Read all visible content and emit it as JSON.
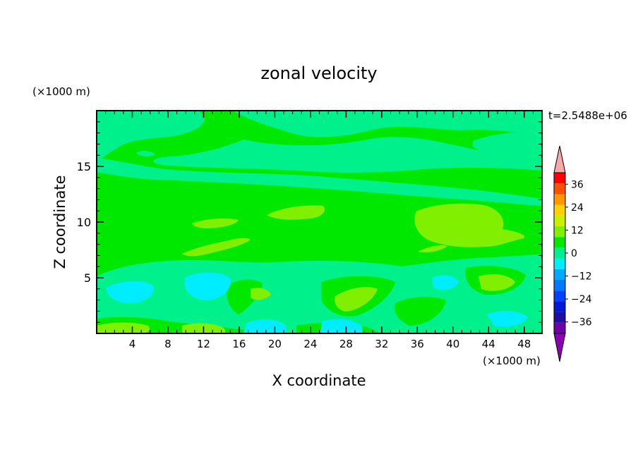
{
  "chart_data": {
    "type": "heatmap",
    "title": "zonal velocity",
    "xlabel": "X coordinate",
    "ylabel": "Z coordinate",
    "x_unit": "(×1000 m)",
    "y_unit": "(×1000 m)",
    "time_label": "t=2.5488e+06",
    "xlim": [
      0,
      50
    ],
    "ylim": [
      0,
      20
    ],
    "x_ticks": [
      4,
      8,
      12,
      16,
      20,
      24,
      28,
      32,
      36,
      40,
      44,
      48
    ],
    "y_ticks": [
      5,
      10,
      15
    ],
    "colorbar": {
      "levels": [
        -42,
        -36,
        -30,
        -24,
        -18,
        -12,
        -6,
        0,
        6,
        12,
        18,
        24,
        30,
        36,
        42
      ],
      "colors": [
        "#6f00a5",
        "#1f0fa0",
        "#0019d5",
        "#0040ff",
        "#0079ff",
        "#00aaff",
        "#00ecff",
        "#00f08c",
        "#00e800",
        "#80f000",
        "#c8f000",
        "#ffd200",
        "#ff9900",
        "#ff5000",
        "#ff0000"
      ],
      "under_color": "#8c00b4",
      "over_color": "#f8a8a8",
      "tick_labels": [
        "-36",
        "-24",
        "-12",
        "0",
        "12",
        "24",
        "36"
      ]
    }
  }
}
